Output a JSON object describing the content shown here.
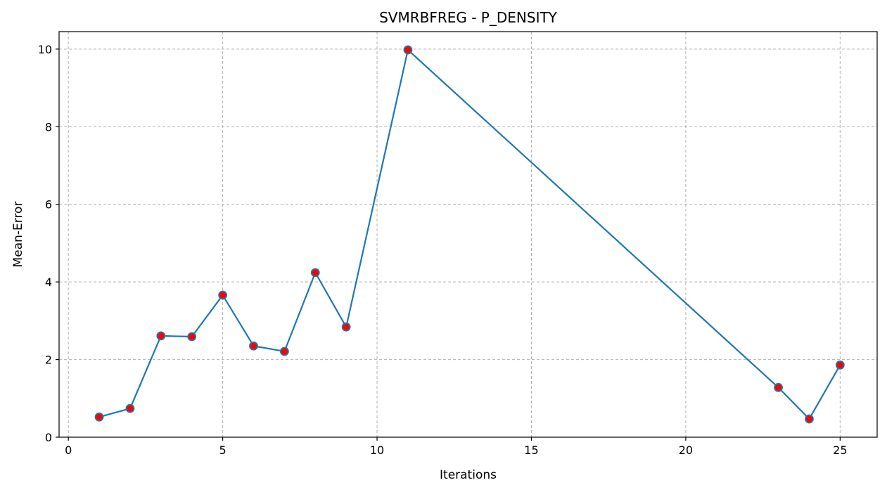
{
  "chart_data": {
    "type": "line",
    "title": "SVMRBFREG - P_DENSITY",
    "xlabel": "Iterations",
    "ylabel": "Mean-Error",
    "xlim": [
      -0.3,
      26.2
    ],
    "ylim": [
      0,
      10.45
    ],
    "xticks": [
      0,
      5,
      10,
      15,
      20,
      25
    ],
    "yticks": [
      0,
      2,
      4,
      6,
      8,
      10
    ],
    "grid": true,
    "series": [
      {
        "x": [
          1,
          2,
          3,
          4,
          5,
          6,
          7,
          8,
          9,
          11,
          23,
          24,
          25
        ],
        "y": [
          0.52,
          0.74,
          2.61,
          2.59,
          3.66,
          2.35,
          2.21,
          4.24,
          2.84,
          9.98,
          1.28,
          0.47,
          1.86
        ],
        "color": "#1f77b4",
        "marker_color": "#ff0000"
      }
    ]
  }
}
